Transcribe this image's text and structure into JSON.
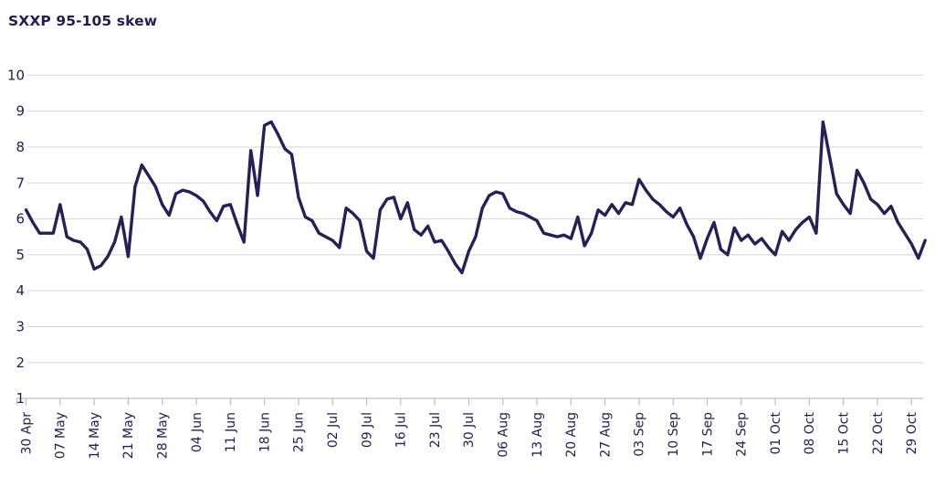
{
  "title": "SXXP 95-105 skew",
  "colors": {
    "line": "#262056",
    "text": "#231d54",
    "grid": "#d9d9d9",
    "axis": "#bdbdbd",
    "background": "#ffffff"
  },
  "chart_data": {
    "type": "line",
    "title": "SXXP 95-105 skew",
    "xlabel": "",
    "ylabel": "",
    "legend": "none",
    "grid": "horizontal",
    "ylim": [
      1,
      10
    ],
    "y_ticks": [
      1,
      2,
      3,
      4,
      5,
      6,
      7,
      8,
      9,
      10
    ],
    "x_tick_labels": [
      "30 Apr",
      "07 May",
      "14 May",
      "21 May",
      "28 May",
      "04 Jun",
      "11 Jun",
      "18 Jun",
      "25 Jun",
      "02 Jul",
      "09 Jul",
      "16 Jul",
      "23 Jul",
      "30 Jul",
      "06 Aug",
      "13 Aug",
      "20 Aug",
      "27 Aug",
      "03 Sep",
      "10 Sep",
      "17 Sep",
      "24 Sep",
      "01 Oct",
      "08 Oct",
      "15 Oct",
      "22 Oct",
      "29 Oct"
    ],
    "x": [
      "30 Apr",
      "01 May",
      "02 May",
      "03 May",
      "04 May",
      "07 May",
      "08 May",
      "09 May",
      "10 May",
      "11 May",
      "14 May",
      "15 May",
      "16 May",
      "17 May",
      "18 May",
      "21 May",
      "22 May",
      "23 May",
      "24 May",
      "25 May",
      "28 May",
      "29 May",
      "30 May",
      "31 May",
      "01 Jun",
      "04 Jun",
      "05 Jun",
      "06 Jun",
      "07 Jun",
      "08 Jun",
      "11 Jun",
      "12 Jun",
      "13 Jun",
      "14 Jun",
      "15 Jun",
      "18 Jun",
      "19 Jun",
      "20 Jun",
      "21 Jun",
      "22 Jun",
      "25 Jun",
      "26 Jun",
      "27 Jun",
      "28 Jun",
      "29 Jun",
      "02 Jul",
      "03 Jul",
      "04 Jul",
      "05 Jul",
      "06 Jul",
      "09 Jul",
      "10 Jul",
      "11 Jul",
      "12 Jul",
      "13 Jul",
      "16 Jul",
      "17 Jul",
      "18 Jul",
      "19 Jul",
      "20 Jul",
      "23 Jul",
      "24 Jul",
      "25 Jul",
      "26 Jul",
      "27 Jul",
      "30 Jul",
      "31 Jul",
      "01 Aug",
      "02 Aug",
      "03 Aug",
      "06 Aug",
      "07 Aug",
      "08 Aug",
      "09 Aug",
      "10 Aug",
      "13 Aug",
      "14 Aug",
      "15 Aug",
      "16 Aug",
      "17 Aug",
      "20 Aug",
      "21 Aug",
      "22 Aug",
      "23 Aug",
      "24 Aug",
      "27 Aug",
      "28 Aug",
      "29 Aug",
      "30 Aug",
      "31 Aug",
      "03 Sep",
      "04 Sep",
      "05 Sep",
      "06 Sep",
      "07 Sep",
      "10 Sep",
      "11 Sep",
      "12 Sep",
      "13 Sep",
      "14 Sep",
      "17 Sep",
      "18 Sep",
      "19 Sep",
      "20 Sep",
      "21 Sep",
      "24 Sep",
      "25 Sep",
      "26 Sep",
      "27 Sep",
      "28 Sep",
      "01 Oct",
      "02 Oct",
      "03 Oct",
      "04 Oct",
      "05 Oct",
      "08 Oct",
      "09 Oct",
      "10 Oct",
      "11 Oct",
      "12 Oct",
      "15 Oct",
      "16 Oct",
      "17 Oct",
      "18 Oct",
      "19 Oct",
      "22 Oct",
      "23 Oct",
      "24 Oct",
      "25 Oct",
      "26 Oct",
      "29 Oct",
      "30 Oct",
      "31 Oct"
    ],
    "values": [
      6.25,
      5.9,
      5.6,
      5.6,
      5.6,
      6.4,
      5.5,
      5.4,
      5.35,
      5.15,
      4.6,
      4.7,
      4.95,
      5.35,
      6.05,
      4.95,
      6.9,
      7.5,
      7.2,
      6.9,
      6.4,
      6.1,
      6.7,
      6.8,
      6.75,
      6.65,
      6.5,
      6.2,
      5.95,
      6.35,
      6.4,
      5.85,
      5.35,
      7.9,
      6.65,
      8.6,
      8.7,
      8.35,
      7.95,
      7.8,
      6.6,
      6.05,
      5.95,
      5.6,
      5.5,
      5.4,
      5.2,
      6.3,
      6.15,
      5.95,
      5.1,
      4.9,
      6.25,
      6.55,
      6.6,
      6.0,
      6.45,
      5.7,
      5.55,
      5.8,
      5.35,
      5.4,
      5.1,
      4.75,
      4.5,
      5.1,
      5.5,
      6.3,
      6.65,
      6.75,
      6.7,
      6.3,
      6.2,
      6.15,
      6.05,
      5.95,
      5.6,
      5.55,
      5.5,
      5.55,
      5.45,
      6.05,
      5.25,
      5.6,
      6.25,
      6.1,
      6.4,
      6.15,
      6.45,
      6.4,
      7.1,
      6.8,
      6.55,
      6.4,
      6.2,
      6.05,
      6.3,
      5.85,
      5.5,
      4.9,
      5.45,
      5.9,
      5.15,
      5.0,
      5.75,
      5.4,
      5.55,
      5.3,
      5.45,
      5.2,
      5.0,
      5.65,
      5.4,
      5.7,
      5.9,
      6.05,
      5.6,
      8.7,
      7.7,
      6.7,
      6.4,
      6.15,
      7.35,
      7.0,
      6.55,
      6.4,
      6.15,
      6.35,
      5.9,
      5.6,
      5.3,
      4.9,
      5.4
    ]
  }
}
